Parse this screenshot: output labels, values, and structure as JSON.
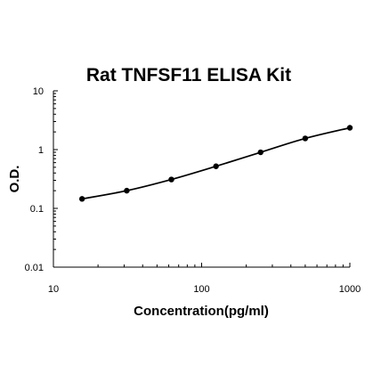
{
  "chart_data": {
    "type": "scatter",
    "title": "Rat TNFSF11 ELISA Kit",
    "xlabel": "Concentration(pg/ml)",
    "ylabel": "O.D.",
    "x_scale": "log",
    "y_scale": "log",
    "xlim": [
      10,
      1000
    ],
    "ylim": [
      0.01,
      10
    ],
    "x_ticks": [
      10,
      100,
      1000
    ],
    "x_tick_labels": [
      "10",
      "100",
      "1000"
    ],
    "y_ticks": [
      0.01,
      0.1,
      1,
      10
    ],
    "y_tick_labels": [
      "0.01",
      "0.1",
      "1",
      "10"
    ],
    "grid": false,
    "series": [
      {
        "x": [
          15.6,
          31.25,
          62.5,
          125,
          250,
          500,
          1000
        ],
        "y": [
          0.145,
          0.2,
          0.31,
          0.52,
          0.9,
          1.55,
          2.35
        ],
        "color": "#000000",
        "marker": "circle",
        "fit_line": true
      }
    ]
  }
}
